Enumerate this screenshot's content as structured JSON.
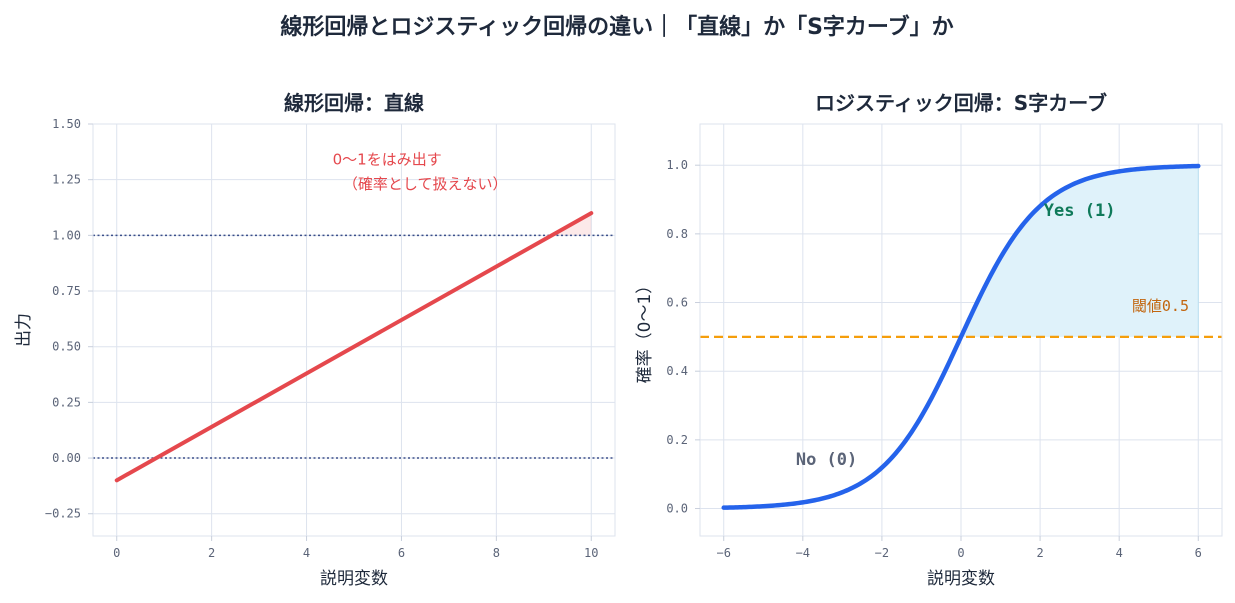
{
  "suptitle": "線形回帰とロジスティック回帰の違い｜「直線」か「S字カーブ」か",
  "colors": {
    "linear": "#e5484d",
    "logistic": "#2563eb",
    "threshold": "#f59e0b",
    "yes_fill": "#dff2fa",
    "bound_line": "#3b4f8a",
    "annotation_red": "#e5484d",
    "yes_text": "#0f7a5a",
    "no_text": "#5b6478",
    "threshold_text": "#c2660f"
  },
  "chart_data": [
    {
      "type": "line",
      "title": "線形回帰：直線",
      "xlabel": "説明変数",
      "ylabel": "出力",
      "xlim": [
        -0.5,
        10.5
      ],
      "ylim": [
        -0.35,
        1.5
      ],
      "xticks": [
        0,
        2,
        4,
        6,
        8,
        10
      ],
      "xtick_labels": [
        "0",
        "2",
        "4",
        "6",
        "8",
        "10"
      ],
      "yticks": [
        -0.25,
        0,
        0.25,
        0.5,
        0.75,
        1.0,
        1.25,
        1.5
      ],
      "ytick_labels": [
        "−0.25",
        "0.00",
        "0.25",
        "0.50",
        "0.75",
        "1.00",
        "1.25",
        "1.50"
      ],
      "grid": true,
      "series": [
        {
          "x": [
            0,
            10
          ],
          "y": [
            -0.1,
            1.1
          ]
        }
      ],
      "hlines": [
        0,
        1.0
      ],
      "overflow_fill": {
        "x_from": 9.17,
        "x_to": 10,
        "above": 1.0
      },
      "annotation": {
        "line1": "0〜1をはみ出す",
        "line2": "（確率として扱えない）",
        "x": 6.5,
        "y1": 1.34,
        "y2": 1.23
      }
    },
    {
      "type": "line",
      "title": "ロジスティック回帰：S字カーブ",
      "xlabel": "説明変数",
      "ylabel": "確率（0〜1）",
      "xlim": [
        -6.6,
        6.6
      ],
      "ylim": [
        -0.08,
        1.12
      ],
      "xticks": [
        -6,
        -4,
        -2,
        0,
        2,
        4,
        6
      ],
      "xtick_labels": [
        "−6",
        "−4",
        "−2",
        "0",
        "2",
        "4",
        "6"
      ],
      "yticks": [
        0,
        0.2,
        0.4,
        0.6,
        0.8,
        1.0
      ],
      "ytick_labels": [
        "0.0",
        "0.2",
        "0.4",
        "0.6",
        "0.8",
        "1.0"
      ],
      "grid": true,
      "series": [
        {
          "function": "sigmoid",
          "x_from": -6,
          "x_to": 6
        }
      ],
      "threshold": {
        "y": 0.5,
        "label": "閾値0.5"
      },
      "labels": [
        {
          "id": "yes",
          "text": "Yes (1)",
          "x": 3.0,
          "y": 0.87
        },
        {
          "id": "no",
          "text": "No (0)",
          "x": -3.4,
          "y": 0.145
        }
      ]
    }
  ]
}
